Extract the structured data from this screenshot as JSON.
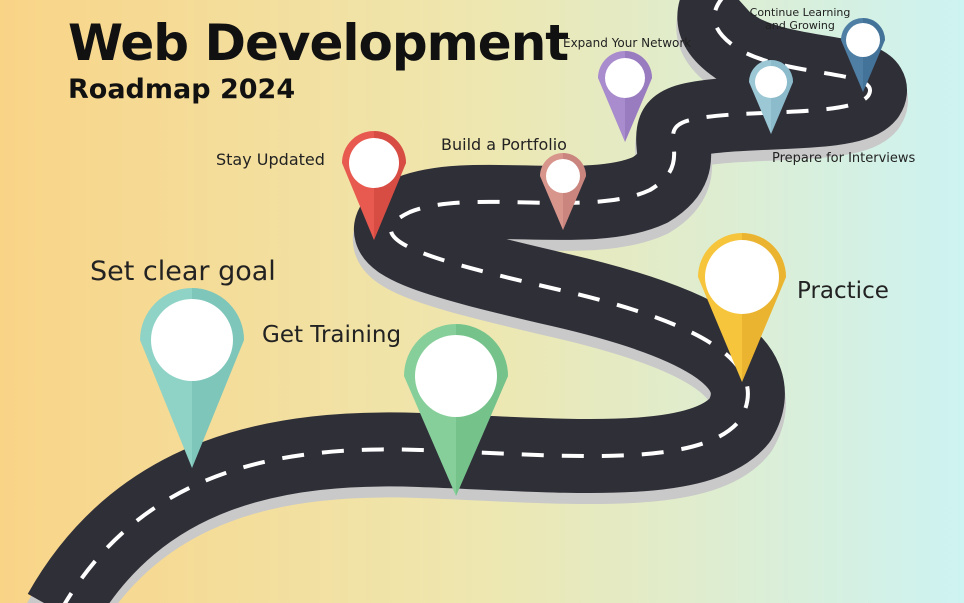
{
  "title": "Web Development",
  "subtitle": "Roadmap 2024",
  "milestones": {
    "set_goal": "Set clear goal",
    "training": "Get Training",
    "practice": "Practice",
    "stay_updated": "Stay Updated",
    "portfolio": "Build a Portfolio",
    "network": "Expand Your Network",
    "interviews": "Prepare for Interviews",
    "learning": "Continue Learning and Growing"
  },
  "colors": {
    "bg_left": "#f9d487",
    "bg_mid": "#eee7b0",
    "bg_right": "#cdf3f2",
    "road": "#2f2f38",
    "road_edge": "#c9c9c9",
    "pin_teal": "#8fd3c6",
    "pin_green": "#86cf9a",
    "pin_yellow": "#f6c53c",
    "pin_red": "#e85a50",
    "pin_rose": "#d8958c",
    "pin_purple": "#a98ccd",
    "pin_lightblue": "#9cc8d6",
    "pin_darkblue": "#4f7fa5"
  }
}
